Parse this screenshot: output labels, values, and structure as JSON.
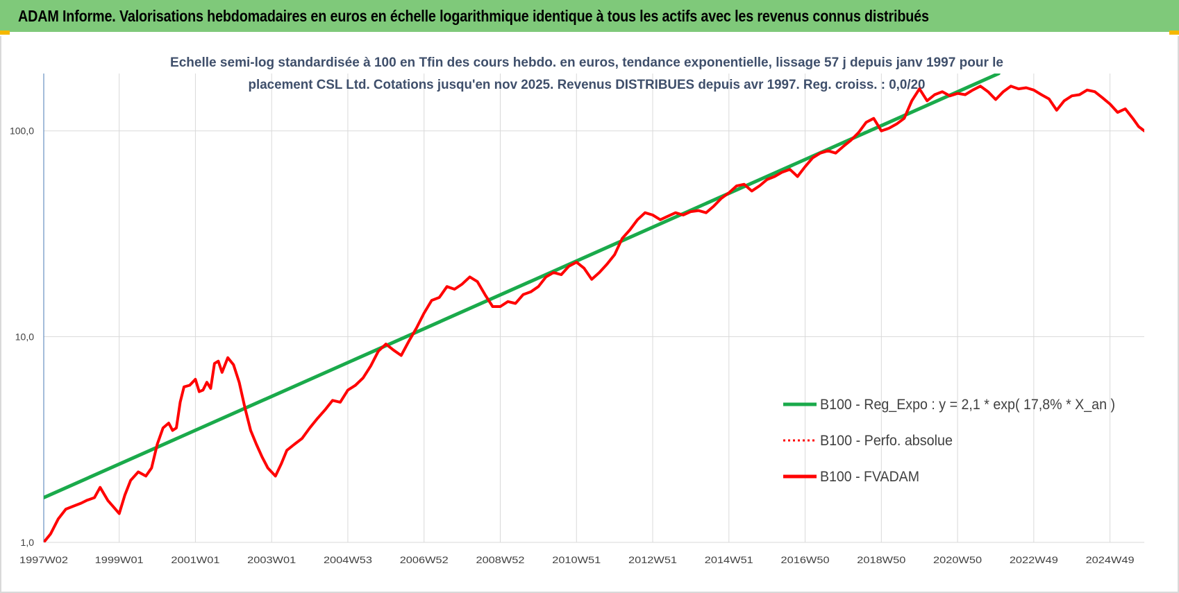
{
  "header": {
    "title": "ADAM Informe. Valorisations hebdomadaires en euros en échelle logarithmique identique à tous les actifs avec les revenus connus distribués"
  },
  "colors": {
    "header_bg": "#7fc97a",
    "accent_corner": "#f5b800",
    "trend": "#1aaa4b",
    "fvadam": "#ff0000",
    "perfo": "#ff0000",
    "grid": "#d9d9d9",
    "axis_text": "#404040",
    "subtitle_text": "#3f4f6b"
  },
  "chart_data": {
    "type": "line",
    "subtitle_lines": [
      "Echelle semi-log standardisée à 100 en Tfin des cours hebdo. en euros, tendance exponentielle, lissage 57 j depuis janv 1997 pour le",
      "placement CSL Ltd. Cotations jusqu'en nov 2025. Revenus DISTRIBUES depuis avr 1997. Reg. croiss. : 0,0/20"
    ],
    "y_scale": "log",
    "ylim": [
      1,
      190
    ],
    "y_ticks": [
      {
        "value": 1,
        "label": "1,0"
      },
      {
        "value": 10,
        "label": "10,0"
      },
      {
        "value": 100,
        "label": "100,0"
      }
    ],
    "x_range": [
      1997.02,
      2025.9
    ],
    "x_ticks": [
      {
        "value": 1997.02,
        "label": "1997W02"
      },
      {
        "value": 1999.0,
        "label": "1999W01"
      },
      {
        "value": 2001.0,
        "label": "2001W01"
      },
      {
        "value": 2003.0,
        "label": "2003W01"
      },
      {
        "value": 2005.0,
        "label": "2004W53"
      },
      {
        "value": 2007.0,
        "label": "2006W52"
      },
      {
        "value": 2009.0,
        "label": "2008W52"
      },
      {
        "value": 2011.0,
        "label": "2010W51"
      },
      {
        "value": 2013.0,
        "label": "2012W51"
      },
      {
        "value": 2015.0,
        "label": "2014W51"
      },
      {
        "value": 2017.0,
        "label": "2016W50"
      },
      {
        "value": 2019.0,
        "label": "2018W50"
      },
      {
        "value": 2021.0,
        "label": "2020W50"
      },
      {
        "value": 2023.0,
        "label": "2022W49"
      },
      {
        "value": 2025.0,
        "label": "2024W49"
      }
    ],
    "legend_position": "right-middle",
    "legend": [
      {
        "key": "trend",
        "label": "B100 - Reg_Expo : y = 2,1 * exp( 17,8% *  X_an )",
        "style": "solid"
      },
      {
        "key": "perfo",
        "label": "B100 - Perfo. absolue",
        "style": "dotted"
      },
      {
        "key": "fvadam",
        "label": "B100 - FVADAM",
        "style": "solid"
      }
    ],
    "series": [
      {
        "key": "trend",
        "points": [
          [
            1997.02,
            1.65
          ],
          [
            2022.08,
            190
          ]
        ]
      },
      {
        "key": "fvadam",
        "points": [
          [
            1997.02,
            1.0
          ],
          [
            1997.2,
            1.1
          ],
          [
            1997.4,
            1.3
          ],
          [
            1997.6,
            1.45
          ],
          [
            1997.8,
            1.5
          ],
          [
            1998.0,
            1.55
          ],
          [
            1998.15,
            1.6
          ],
          [
            1998.35,
            1.65
          ],
          [
            1998.5,
            1.85
          ],
          [
            1998.7,
            1.6
          ],
          [
            1998.9,
            1.45
          ],
          [
            1999.0,
            1.38
          ],
          [
            1999.15,
            1.7
          ],
          [
            1999.3,
            2.0
          ],
          [
            1999.5,
            2.2
          ],
          [
            1999.7,
            2.1
          ],
          [
            1999.85,
            2.3
          ],
          [
            2000.0,
            3.0
          ],
          [
            2000.15,
            3.6
          ],
          [
            2000.3,
            3.8
          ],
          [
            2000.4,
            3.5
          ],
          [
            2000.5,
            3.6
          ],
          [
            2000.6,
            4.8
          ],
          [
            2000.7,
            5.7
          ],
          [
            2000.85,
            5.8
          ],
          [
            2001.0,
            6.2
          ],
          [
            2001.1,
            5.4
          ],
          [
            2001.2,
            5.5
          ],
          [
            2001.3,
            6.0
          ],
          [
            2001.4,
            5.6
          ],
          [
            2001.5,
            7.4
          ],
          [
            2001.6,
            7.6
          ],
          [
            2001.7,
            6.7
          ],
          [
            2001.85,
            7.9
          ],
          [
            2002.0,
            7.3
          ],
          [
            2002.15,
            6.0
          ],
          [
            2002.3,
            4.5
          ],
          [
            2002.45,
            3.5
          ],
          [
            2002.6,
            3.0
          ],
          [
            2002.75,
            2.6
          ],
          [
            2002.9,
            2.3
          ],
          [
            2003.1,
            2.1
          ],
          [
            2003.25,
            2.4
          ],
          [
            2003.4,
            2.8
          ],
          [
            2003.6,
            3.0
          ],
          [
            2003.8,
            3.2
          ],
          [
            2004.0,
            3.6
          ],
          [
            2004.2,
            4.0
          ],
          [
            2004.4,
            4.4
          ],
          [
            2004.6,
            4.9
          ],
          [
            2004.8,
            4.8
          ],
          [
            2005.0,
            5.5
          ],
          [
            2005.2,
            5.8
          ],
          [
            2005.4,
            6.3
          ],
          [
            2005.6,
            7.2
          ],
          [
            2005.8,
            8.5
          ],
          [
            2006.0,
            9.2
          ],
          [
            2006.2,
            8.6
          ],
          [
            2006.4,
            8.1
          ],
          [
            2006.6,
            9.5
          ],
          [
            2006.8,
            11.0
          ],
          [
            2007.0,
            13.0
          ],
          [
            2007.2,
            15.0
          ],
          [
            2007.4,
            15.5
          ],
          [
            2007.6,
            17.5
          ],
          [
            2007.8,
            17.0
          ],
          [
            2008.0,
            18.0
          ],
          [
            2008.2,
            19.5
          ],
          [
            2008.4,
            18.5
          ],
          [
            2008.6,
            16.0
          ],
          [
            2008.8,
            14.0
          ],
          [
            2009.0,
            14.0
          ],
          [
            2009.2,
            14.8
          ],
          [
            2009.4,
            14.5
          ],
          [
            2009.6,
            16.0
          ],
          [
            2009.8,
            16.5
          ],
          [
            2010.0,
            17.5
          ],
          [
            2010.2,
            19.5
          ],
          [
            2010.4,
            20.5
          ],
          [
            2010.6,
            20.0
          ],
          [
            2010.8,
            22.0
          ],
          [
            2011.0,
            23.0
          ],
          [
            2011.2,
            21.5
          ],
          [
            2011.4,
            19.0
          ],
          [
            2011.6,
            20.5
          ],
          [
            2011.8,
            22.5
          ],
          [
            2012.0,
            25.0
          ],
          [
            2012.2,
            30.0
          ],
          [
            2012.4,
            33.0
          ],
          [
            2012.6,
            37.0
          ],
          [
            2012.8,
            40.0
          ],
          [
            2013.0,
            39.0
          ],
          [
            2013.2,
            37.0
          ],
          [
            2013.4,
            38.5
          ],
          [
            2013.6,
            40.0
          ],
          [
            2013.8,
            39.0
          ],
          [
            2014.0,
            40.5
          ],
          [
            2014.2,
            41.0
          ],
          [
            2014.4,
            40.0
          ],
          [
            2014.6,
            43.0
          ],
          [
            2014.8,
            47.0
          ],
          [
            2015.0,
            50.0
          ],
          [
            2015.2,
            54.0
          ],
          [
            2015.4,
            55.0
          ],
          [
            2015.6,
            51.0
          ],
          [
            2015.8,
            54.0
          ],
          [
            2016.0,
            58.0
          ],
          [
            2016.2,
            60.0
          ],
          [
            2016.4,
            63.0
          ],
          [
            2016.6,
            65.0
          ],
          [
            2016.8,
            60.0
          ],
          [
            2017.0,
            67.0
          ],
          [
            2017.2,
            74.0
          ],
          [
            2017.4,
            78.0
          ],
          [
            2017.6,
            80.0
          ],
          [
            2017.8,
            78.0
          ],
          [
            2018.0,
            84.0
          ],
          [
            2018.2,
            90.0
          ],
          [
            2018.4,
            98.0
          ],
          [
            2018.6,
            110.0
          ],
          [
            2018.8,
            115.0
          ],
          [
            2019.0,
            100.0
          ],
          [
            2019.2,
            103.0
          ],
          [
            2019.4,
            108.0
          ],
          [
            2019.6,
            115.0
          ],
          [
            2019.8,
            140.0
          ],
          [
            2020.0,
            160.0
          ],
          [
            2020.2,
            140.0
          ],
          [
            2020.4,
            150.0
          ],
          [
            2020.6,
            155.0
          ],
          [
            2020.8,
            148.0
          ],
          [
            2021.0,
            152.0
          ],
          [
            2021.2,
            150.0
          ],
          [
            2021.4,
            158.0
          ],
          [
            2021.6,
            165.0
          ],
          [
            2021.8,
            155.0
          ],
          [
            2022.0,
            142.0
          ],
          [
            2022.2,
            155.0
          ],
          [
            2022.4,
            165.0
          ],
          [
            2022.6,
            160.0
          ],
          [
            2022.8,
            162.0
          ],
          [
            2023.0,
            158.0
          ],
          [
            2023.2,
            150.0
          ],
          [
            2023.4,
            143.0
          ],
          [
            2023.6,
            126.0
          ],
          [
            2023.8,
            140.0
          ],
          [
            2024.0,
            148.0
          ],
          [
            2024.2,
            150.0
          ],
          [
            2024.4,
            158.0
          ],
          [
            2024.6,
            155.0
          ],
          [
            2024.8,
            145.0
          ],
          [
            2025.0,
            135.0
          ],
          [
            2025.2,
            123.0
          ],
          [
            2025.4,
            128.0
          ],
          [
            2025.6,
            115.0
          ],
          [
            2025.75,
            105.0
          ],
          [
            2025.9,
            100.0
          ]
        ]
      }
    ]
  }
}
